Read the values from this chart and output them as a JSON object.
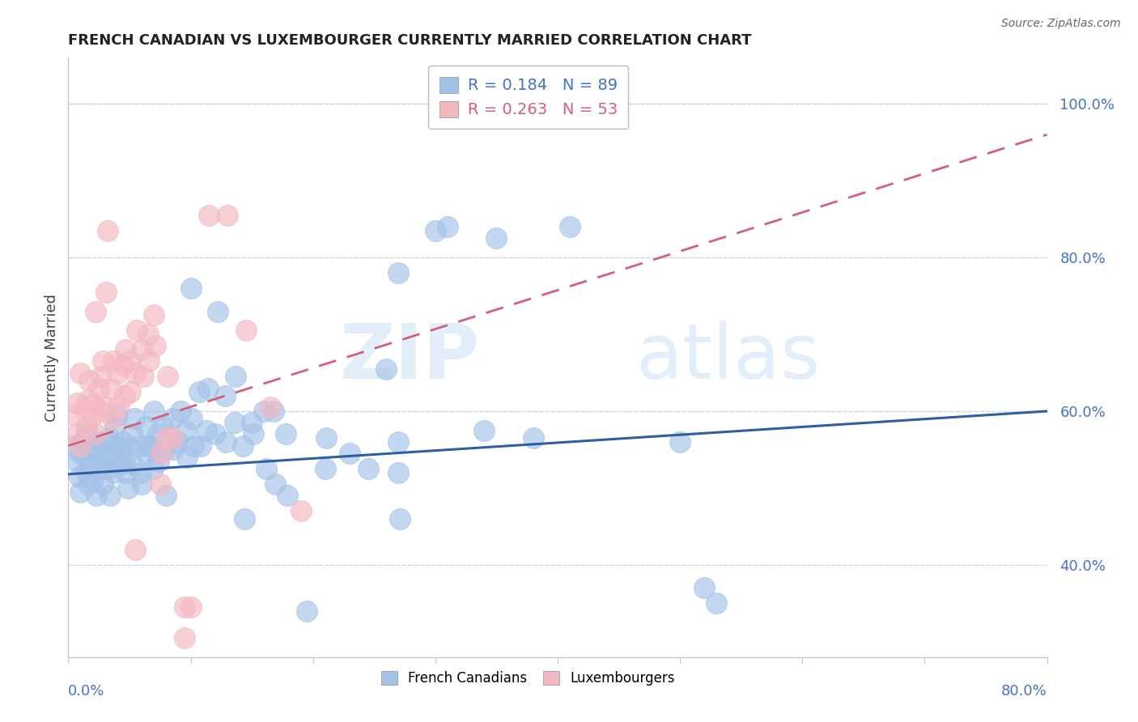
{
  "title": "FRENCH CANADIAN VS LUXEMBOURGER CURRENTLY MARRIED CORRELATION CHART",
  "source": "Source: ZipAtlas.com",
  "ylabel": "Currently Married",
  "xlim": [
    0.0,
    0.8
  ],
  "ylim": [
    0.28,
    1.06
  ],
  "yticks": [
    0.4,
    0.6,
    0.8,
    1.0
  ],
  "ytick_labels": [
    "40.0%",
    "60.0%",
    "80.0%",
    "100.0%"
  ],
  "xtick_labels": [
    "0.0%",
    "80.0%"
  ],
  "xtick_pos": [
    0.0,
    0.8
  ],
  "blue_color": "#a4c2e8",
  "pink_color": "#f4b8c1",
  "blue_line_color": "#2e5fa3",
  "pink_line_color": "#d45f7a",
  "text_color": "#4472c4",
  "blue_R": 0.184,
  "blue_N": 89,
  "pink_R": 0.263,
  "pink_N": 53,
  "legend_label_blue": "French Canadians",
  "legend_label_pink": "Luxembourgers",
  "watermark_zip": "ZIP",
  "watermark_atlas": "atlas",
  "blue_scatter": [
    [
      0.005,
      0.555
    ],
    [
      0.007,
      0.535
    ],
    [
      0.009,
      0.515
    ],
    [
      0.01,
      0.495
    ],
    [
      0.01,
      0.545
    ],
    [
      0.012,
      0.56
    ],
    [
      0.014,
      0.54
    ],
    [
      0.015,
      0.52
    ],
    [
      0.015,
      0.575
    ],
    [
      0.016,
      0.505
    ],
    [
      0.018,
      0.53
    ],
    [
      0.02,
      0.55
    ],
    [
      0.02,
      0.51
    ],
    [
      0.022,
      0.555
    ],
    [
      0.023,
      0.49
    ],
    [
      0.025,
      0.54
    ],
    [
      0.026,
      0.525
    ],
    [
      0.027,
      0.56
    ],
    [
      0.028,
      0.505
    ],
    [
      0.03,
      0.545
    ],
    [
      0.032,
      0.525
    ],
    [
      0.033,
      0.565
    ],
    [
      0.034,
      0.49
    ],
    [
      0.036,
      0.54
    ],
    [
      0.037,
      0.52
    ],
    [
      0.038,
      0.555
    ],
    [
      0.038,
      0.58
    ],
    [
      0.04,
      0.595
    ],
    [
      0.042,
      0.53
    ],
    [
      0.043,
      0.55
    ],
    [
      0.044,
      0.56
    ],
    [
      0.046,
      0.535
    ],
    [
      0.047,
      0.52
    ],
    [
      0.048,
      0.555
    ],
    [
      0.049,
      0.5
    ],
    [
      0.052,
      0.57
    ],
    [
      0.053,
      0.53
    ],
    [
      0.054,
      0.59
    ],
    [
      0.058,
      0.555
    ],
    [
      0.059,
      0.52
    ],
    [
      0.06,
      0.505
    ],
    [
      0.063,
      0.58
    ],
    [
      0.064,
      0.545
    ],
    [
      0.065,
      0.555
    ],
    [
      0.068,
      0.555
    ],
    [
      0.069,
      0.525
    ],
    [
      0.07,
      0.6
    ],
    [
      0.073,
      0.57
    ],
    [
      0.074,
      0.535
    ],
    [
      0.078,
      0.58
    ],
    [
      0.079,
      0.55
    ],
    [
      0.08,
      0.49
    ],
    [
      0.085,
      0.59
    ],
    [
      0.086,
      0.55
    ],
    [
      0.09,
      0.56
    ],
    [
      0.092,
      0.6
    ],
    [
      0.096,
      0.575
    ],
    [
      0.097,
      0.54
    ],
    [
      0.1,
      0.76
    ],
    [
      0.101,
      0.59
    ],
    [
      0.102,
      0.555
    ],
    [
      0.107,
      0.625
    ],
    [
      0.108,
      0.555
    ],
    [
      0.113,
      0.575
    ],
    [
      0.114,
      0.63
    ],
    [
      0.12,
      0.57
    ],
    [
      0.122,
      0.73
    ],
    [
      0.128,
      0.62
    ],
    [
      0.129,
      0.56
    ],
    [
      0.136,
      0.585
    ],
    [
      0.137,
      0.645
    ],
    [
      0.143,
      0.555
    ],
    [
      0.144,
      0.46
    ],
    [
      0.15,
      0.585
    ],
    [
      0.151,
      0.57
    ],
    [
      0.16,
      0.6
    ],
    [
      0.162,
      0.525
    ],
    [
      0.168,
      0.6
    ],
    [
      0.169,
      0.505
    ],
    [
      0.178,
      0.57
    ],
    [
      0.179,
      0.49
    ],
    [
      0.195,
      0.34
    ],
    [
      0.21,
      0.525
    ],
    [
      0.211,
      0.565
    ],
    [
      0.23,
      0.545
    ],
    [
      0.245,
      0.525
    ],
    [
      0.27,
      0.52
    ],
    [
      0.271,
      0.46
    ],
    [
      0.3,
      0.835
    ],
    [
      0.31,
      0.84
    ],
    [
      0.34,
      0.575
    ],
    [
      0.35,
      0.825
    ],
    [
      0.27,
      0.56
    ],
    [
      0.38,
      0.565
    ],
    [
      0.41,
      0.84
    ],
    [
      0.27,
      0.78
    ],
    [
      0.26,
      0.655
    ],
    [
      0.5,
      0.56
    ],
    [
      0.52,
      0.37
    ],
    [
      0.53,
      0.35
    ]
  ],
  "pink_scatter": [
    [
      0.005,
      0.595
    ],
    [
      0.007,
      0.61
    ],
    [
      0.008,
      0.57
    ],
    [
      0.01,
      0.555
    ],
    [
      0.01,
      0.65
    ],
    [
      0.013,
      0.605
    ],
    [
      0.015,
      0.58
    ],
    [
      0.016,
      0.615
    ],
    [
      0.017,
      0.64
    ],
    [
      0.02,
      0.595
    ],
    [
      0.021,
      0.61
    ],
    [
      0.022,
      0.57
    ],
    [
      0.022,
      0.73
    ],
    [
      0.025,
      0.63
    ],
    [
      0.026,
      0.6
    ],
    [
      0.027,
      0.645
    ],
    [
      0.028,
      0.665
    ],
    [
      0.03,
      0.605
    ],
    [
      0.031,
      0.755
    ],
    [
      0.032,
      0.835
    ],
    [
      0.035,
      0.63
    ],
    [
      0.036,
      0.59
    ],
    [
      0.037,
      0.665
    ],
    [
      0.04,
      0.65
    ],
    [
      0.041,
      0.605
    ],
    [
      0.045,
      0.66
    ],
    [
      0.046,
      0.62
    ],
    [
      0.047,
      0.68
    ],
    [
      0.05,
      0.665
    ],
    [
      0.051,
      0.625
    ],
    [
      0.055,
      0.65
    ],
    [
      0.056,
      0.705
    ],
    [
      0.06,
      0.68
    ],
    [
      0.061,
      0.645
    ],
    [
      0.065,
      0.7
    ],
    [
      0.066,
      0.665
    ],
    [
      0.07,
      0.725
    ],
    [
      0.071,
      0.685
    ],
    [
      0.075,
      0.505
    ],
    [
      0.076,
      0.545
    ],
    [
      0.08,
      0.565
    ],
    [
      0.081,
      0.645
    ],
    [
      0.085,
      0.565
    ],
    [
      0.095,
      0.345
    ],
    [
      0.1,
      0.345
    ],
    [
      0.115,
      0.855
    ],
    [
      0.13,
      0.855
    ],
    [
      0.145,
      0.705
    ],
    [
      0.165,
      0.605
    ],
    [
      0.19,
      0.47
    ],
    [
      0.055,
      0.42
    ],
    [
      0.095,
      0.305
    ]
  ],
  "blue_trend_x": [
    0.0,
    0.8
  ],
  "blue_trend_y": [
    0.518,
    0.6
  ],
  "pink_trend_x": [
    0.0,
    0.8
  ],
  "pink_trend_y": [
    0.555,
    0.96
  ],
  "grid_color": "#d0d8e8",
  "spine_color": "#c0c8d8"
}
